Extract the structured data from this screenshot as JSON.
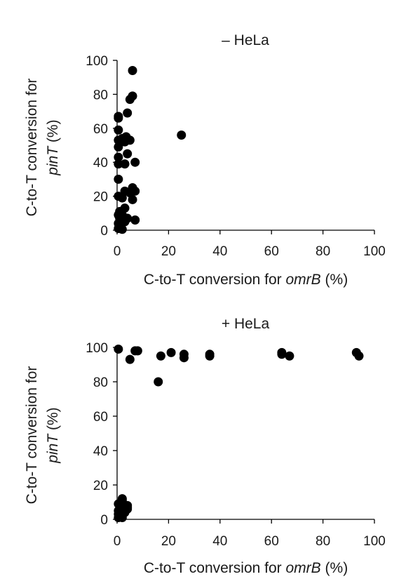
{
  "chart_data": [
    {
      "type": "scatter",
      "title": "– HeLa",
      "xlabel_prefix": "C-to-T conversion for ",
      "xlabel_gene": "omrB",
      "xlabel_suffix": " (%)",
      "ylabel_line1": "C-to-T conversion for",
      "ylabel_gene": "pinT",
      "ylabel_suffix": " (%)",
      "xlim": [
        0,
        100
      ],
      "ylim": [
        0,
        100
      ],
      "xticks": [
        "0",
        "20",
        "40",
        "60",
        "80",
        "100"
      ],
      "yticks": [
        "0",
        "20",
        "40",
        "60",
        "80",
        "100"
      ],
      "marker_color": "#000000",
      "points": [
        [
          6,
          94
        ],
        [
          6,
          79
        ],
        [
          5,
          77
        ],
        [
          4,
          69
        ],
        [
          0.5,
          67
        ],
        [
          0.5,
          66
        ],
        [
          0.5,
          59
        ],
        [
          3.5,
          55
        ],
        [
          2,
          54
        ],
        [
          5,
          53
        ],
        [
          0.5,
          53
        ],
        [
          3,
          52
        ],
        [
          0.5,
          49
        ],
        [
          4,
          45
        ],
        [
          0.5,
          43
        ],
        [
          7,
          40
        ],
        [
          0.5,
          39
        ],
        [
          3,
          39
        ],
        [
          25,
          56
        ],
        [
          0.5,
          30
        ],
        [
          6,
          25
        ],
        [
          3,
          23
        ],
        [
          7,
          23
        ],
        [
          5,
          22
        ],
        [
          0.5,
          20
        ],
        [
          2,
          19
        ],
        [
          6,
          18
        ],
        [
          3,
          13
        ],
        [
          1,
          11
        ],
        [
          0.5,
          9
        ],
        [
          2,
          9
        ],
        [
          1,
          7
        ],
        [
          4,
          7
        ],
        [
          7,
          6
        ],
        [
          3,
          5
        ],
        [
          0.5,
          4
        ],
        [
          1.5,
          3
        ],
        [
          0.5,
          1
        ],
        [
          1,
          2
        ],
        [
          2,
          0.5
        ]
      ]
    },
    {
      "type": "scatter",
      "title": "+ HeLa",
      "xlabel_prefix": "C-to-T conversion for ",
      "xlabel_gene": "omrB",
      "xlabel_suffix": " (%)",
      "ylabel_line1": "C-to-T conversion for",
      "ylabel_gene": "pinT",
      "ylabel_suffix": " (%)",
      "xlim": [
        0,
        100
      ],
      "ylim": [
        0,
        100
      ],
      "xticks": [
        "0",
        "20",
        "40",
        "60",
        "80",
        "100"
      ],
      "yticks": [
        "0",
        "20",
        "40",
        "60",
        "80",
        "100"
      ],
      "marker_color": "#000000",
      "points": [
        [
          0.5,
          99
        ],
        [
          7,
          98
        ],
        [
          8,
          98
        ],
        [
          5,
          93
        ],
        [
          17,
          95
        ],
        [
          21,
          97
        ],
        [
          26,
          96
        ],
        [
          26,
          94
        ],
        [
          36,
          96
        ],
        [
          36,
          95
        ],
        [
          64,
          97
        ],
        [
          64,
          96
        ],
        [
          67,
          95
        ],
        [
          93,
          97
        ],
        [
          94,
          95
        ],
        [
          16,
          80
        ],
        [
          0.5,
          9
        ],
        [
          2,
          11
        ],
        [
          2,
          12
        ],
        [
          4,
          8
        ],
        [
          4,
          7
        ],
        [
          3,
          6
        ],
        [
          1,
          8
        ],
        [
          0.5,
          5
        ],
        [
          2,
          5
        ],
        [
          0.5,
          3
        ],
        [
          3,
          4
        ],
        [
          1,
          2
        ],
        [
          0.5,
          1
        ],
        [
          2,
          1
        ],
        [
          4,
          6
        ],
        [
          1,
          6
        ]
      ]
    }
  ]
}
